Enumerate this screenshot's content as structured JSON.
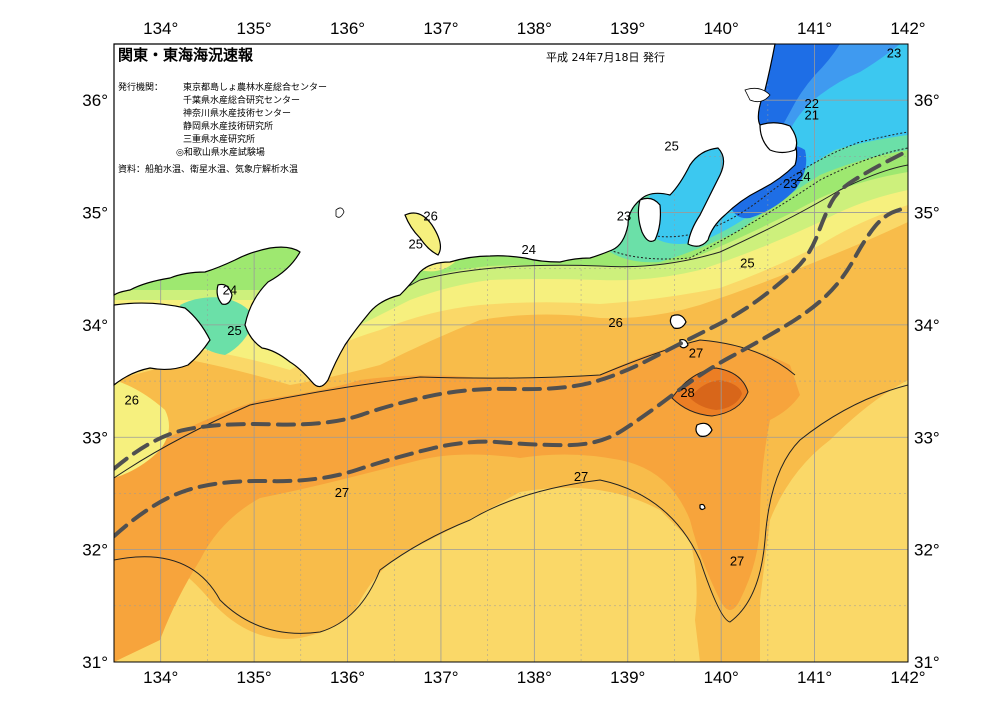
{
  "header": {
    "title": "関東・東海海況速報",
    "date": "平成 24年7月18日 発行",
    "issuer_label": "発行機関：",
    "issuers": [
      "東京都島しょ農林水産総合センター",
      "千葉県水産総合研究センター",
      "神奈川県水産技術センター",
      "静岡県水産技術研究所",
      "三重県水産研究所",
      "◎和歌山県水産試験場"
    ],
    "source": "資料：船舶水温、衛星水温、気象庁解析水温"
  },
  "axes": {
    "lon_range": [
      133.5,
      142
    ],
    "lat_range": [
      31,
      36.5
    ],
    "lon_ticks": [
      "134°",
      "135°",
      "136°",
      "137°",
      "138°",
      "139°",
      "140°",
      "141°",
      "142°"
    ],
    "lat_ticks": [
      "31°",
      "32°",
      "33°",
      "34°",
      "35°",
      "36°"
    ]
  },
  "legend_colors": {
    "t21": "#1e6ee6",
    "t22": "#3f9af0",
    "t23": "#3cc8f0",
    "t24": "#6be0a8",
    "t25": "#9ee870",
    "t255": "#cdf07c",
    "t26": "#f6f07e",
    "t265": "#fad868",
    "t27": "#f8bc4a",
    "t275": "#f7a43c",
    "t28": "#ec7e24",
    "land": "#ffffff",
    "grid": "#9a9a9a",
    "current": "#505050"
  },
  "isotherm_labels": [
    {
      "text": "21",
      "lon": 140.97,
      "lat": 35.83
    },
    {
      "text": "22",
      "lon": 140.97,
      "lat": 35.93
    },
    {
      "text": "23",
      "lon": 141.85,
      "lat": 36.38
    },
    {
      "text": "23",
      "lon": 140.74,
      "lat": 35.22
    },
    {
      "text": "23",
      "lon": 138.96,
      "lat": 34.93
    },
    {
      "text": "24",
      "lon": 140.88,
      "lat": 35.28
    },
    {
      "text": "24",
      "lon": 137.94,
      "lat": 34.63
    },
    {
      "text": "24",
      "lon": 134.74,
      "lat": 34.27
    },
    {
      "text": "25",
      "lon": 139.47,
      "lat": 35.55
    },
    {
      "text": "25",
      "lon": 140.28,
      "lat": 34.51
    },
    {
      "text": "25",
      "lon": 136.73,
      "lat": 34.68
    },
    {
      "text": "25",
      "lon": 134.79,
      "lat": 33.91
    },
    {
      "text": "26",
      "lon": 136.89,
      "lat": 34.93
    },
    {
      "text": "26",
      "lon": 138.87,
      "lat": 33.98
    },
    {
      "text": "26",
      "lon": 133.69,
      "lat": 33.29
    },
    {
      "text": "27",
      "lon": 139.73,
      "lat": 33.71
    },
    {
      "text": "27",
      "lon": 138.5,
      "lat": 32.61
    },
    {
      "text": "27",
      "lon": 135.94,
      "lat": 32.47
    },
    {
      "text": "27",
      "lon": 140.17,
      "lat": 31.86
    },
    {
      "text": "28",
      "lon": 139.64,
      "lat": 33.36
    }
  ],
  "kuroshio": {
    "inner": [
      [
        133.5,
        32.72
      ],
      [
        133.9,
        33.0
      ],
      [
        134.6,
        33.13
      ],
      [
        135.8,
        33.1
      ],
      [
        136.5,
        33.3
      ],
      [
        137.3,
        33.44
      ],
      [
        138.3,
        33.42
      ],
      [
        138.9,
        33.55
      ],
      [
        139.6,
        33.85
      ],
      [
        140.2,
        34.1
      ],
      [
        140.65,
        34.38
      ],
      [
        140.95,
        34.62
      ],
      [
        141.12,
        35.0
      ],
      [
        141.25,
        35.2
      ],
      [
        141.6,
        35.38
      ],
      [
        142.0,
        35.55
      ]
    ],
    "outer": [
      [
        133.5,
        32.12
      ],
      [
        133.9,
        32.42
      ],
      [
        134.6,
        32.62
      ],
      [
        135.7,
        32.6
      ],
      [
        136.5,
        32.82
      ],
      [
        137.3,
        32.98
      ],
      [
        138.0,
        32.93
      ],
      [
        138.7,
        32.93
      ],
      [
        139.2,
        33.2
      ],
      [
        139.8,
        33.58
      ],
      [
        140.4,
        33.85
      ],
      [
        140.95,
        34.12
      ],
      [
        141.3,
        34.4
      ],
      [
        141.55,
        34.78
      ],
      [
        141.75,
        34.98
      ],
      [
        142.0,
        35.05
      ]
    ]
  }
}
